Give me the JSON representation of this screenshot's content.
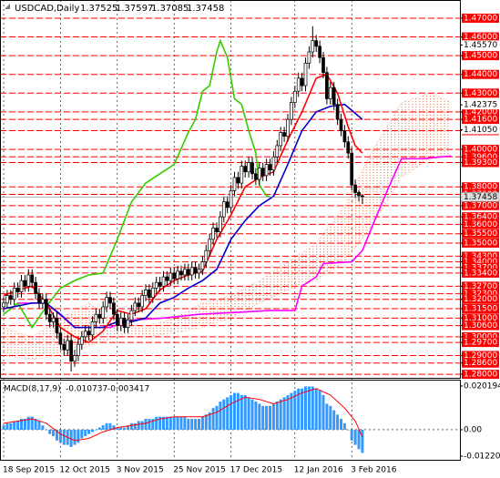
{
  "chart_data": {
    "type": "candlestick",
    "symbol": "USDCAD,Daily",
    "categories": [
      "18 Sep 2015",
      null,
      null,
      null,
      null,
      null,
      null,
      null,
      null,
      null,
      null,
      null,
      null,
      null,
      null,
      null,
      "12 Oct 2015",
      null,
      null,
      null,
      null,
      null,
      null,
      null,
      null,
      null,
      null,
      null,
      null,
      null,
      null,
      null,
      "3 Nov 2015",
      null,
      null,
      null,
      null,
      null,
      null,
      null,
      null,
      null,
      null,
      null,
      null,
      null,
      null,
      null,
      "25 Nov 2015",
      null,
      null,
      null,
      null,
      null,
      null,
      null,
      null,
      null,
      null,
      null,
      null,
      null,
      null,
      null,
      "17 Dec 2015",
      null,
      null,
      null,
      null,
      null,
      null,
      null,
      null,
      null,
      null,
      null,
      null,
      null,
      null,
      null,
      null,
      null,
      "12 Jan 2016",
      null,
      null,
      null,
      null,
      null,
      null,
      null,
      null,
      null,
      null,
      null,
      null,
      null,
      null,
      null,
      "3 Feb 2016",
      null,
      null,
      null
    ],
    "open": [
      1.316,
      1.318,
      1.322,
      1.32,
      1.326,
      1.324,
      1.33,
      1.327,
      1.333,
      1.329,
      1.323,
      1.318,
      1.32,
      1.312,
      1.308,
      1.31,
      1.302,
      1.296,
      1.293,
      1.298,
      1.287,
      1.29,
      1.296,
      1.3,
      1.303,
      1.301,
      1.308,
      1.312,
      1.31,
      1.316,
      1.321,
      1.318,
      1.312,
      1.306,
      1.31,
      1.305,
      1.309,
      1.314,
      1.318,
      1.316,
      1.322,
      1.325,
      1.321,
      1.326,
      1.329,
      1.327,
      1.332,
      1.33,
      1.334,
      1.331,
      1.335,
      1.333,
      1.336,
      1.333,
      1.337,
      1.334,
      1.336,
      1.34,
      1.346,
      1.352,
      1.358,
      1.356,
      1.364,
      1.372,
      1.369,
      1.378,
      1.385,
      1.382,
      1.391,
      1.388,
      1.393,
      1.387,
      1.384,
      1.39,
      1.386,
      1.392,
      1.389,
      1.396,
      1.402,
      1.409,
      1.407,
      1.416,
      1.425,
      1.431,
      1.438,
      1.434,
      1.446,
      1.452,
      1.458,
      1.455,
      1.449,
      1.441,
      1.427,
      1.433,
      1.424,
      1.416,
      1.41,
      1.404,
      1.398,
      1.381,
      1.377,
      1.37525
    ],
    "high": [
      1.321,
      1.325,
      1.325,
      1.329,
      1.329,
      1.333,
      1.333,
      1.336,
      1.336,
      1.332,
      1.326,
      1.323,
      1.323,
      1.315,
      1.313,
      1.313,
      1.305,
      1.299,
      1.301,
      1.301,
      1.293,
      1.299,
      1.303,
      1.306,
      1.306,
      1.311,
      1.315,
      1.315,
      1.319,
      1.324,
      1.324,
      1.321,
      1.315,
      1.313,
      1.313,
      1.312,
      1.317,
      1.321,
      1.321,
      1.325,
      1.328,
      1.328,
      1.329,
      1.332,
      1.332,
      1.335,
      1.335,
      1.337,
      1.337,
      1.338,
      1.338,
      1.339,
      1.339,
      1.34,
      1.34,
      1.339,
      1.343,
      1.349,
      1.355,
      1.361,
      1.361,
      1.367,
      1.375,
      1.375,
      1.381,
      1.388,
      1.388,
      1.394,
      1.394,
      1.396,
      1.396,
      1.39,
      1.393,
      1.393,
      1.395,
      1.395,
      1.399,
      1.405,
      1.412,
      1.412,
      1.419,
      1.428,
      1.434,
      1.441,
      1.441,
      1.449,
      1.455,
      1.4657,
      1.461,
      1.458,
      1.452,
      1.444,
      1.436,
      1.436,
      1.427,
      1.419,
      1.413,
      1.407,
      1.401,
      1.384,
      1.3783,
      1.37597
    ],
    "low": [
      1.313,
      1.315,
      1.317,
      1.317,
      1.321,
      1.321,
      1.324,
      1.324,
      1.326,
      1.32,
      1.315,
      1.315,
      1.309,
      1.305,
      1.305,
      1.299,
      1.293,
      1.29,
      1.29,
      1.2815,
      1.284,
      1.287,
      1.293,
      1.297,
      1.298,
      1.298,
      1.305,
      1.307,
      1.307,
      1.313,
      1.315,
      1.309,
      1.303,
      1.303,
      1.302,
      1.302,
      1.306,
      1.311,
      1.313,
      1.313,
      1.319,
      1.318,
      1.318,
      1.323,
      1.324,
      1.324,
      1.327,
      1.327,
      1.328,
      1.328,
      1.33,
      1.33,
      1.33,
      1.33,
      1.331,
      1.331,
      1.333,
      1.337,
      1.343,
      1.349,
      1.353,
      1.353,
      1.361,
      1.366,
      1.366,
      1.375,
      1.379,
      1.379,
      1.385,
      1.385,
      1.384,
      1.381,
      1.381,
      1.383,
      1.383,
      1.386,
      1.386,
      1.393,
      1.399,
      1.404,
      1.404,
      1.413,
      1.422,
      1.428,
      1.431,
      1.431,
      1.443,
      1.449,
      1.452,
      1.446,
      1.438,
      1.424,
      1.424,
      1.421,
      1.413,
      1.407,
      1.401,
      1.395,
      1.378,
      1.374,
      1.3722,
      1.37085
    ],
    "close": [
      1.318,
      1.322,
      1.32,
      1.326,
      1.324,
      1.33,
      1.327,
      1.333,
      1.329,
      1.323,
      1.318,
      1.32,
      1.312,
      1.308,
      1.31,
      1.302,
      1.296,
      1.293,
      1.298,
      1.287,
      1.29,
      1.296,
      1.3,
      1.303,
      1.301,
      1.308,
      1.312,
      1.31,
      1.316,
      1.321,
      1.318,
      1.312,
      1.306,
      1.31,
      1.305,
      1.309,
      1.314,
      1.318,
      1.316,
      1.322,
      1.325,
      1.321,
      1.326,
      1.329,
      1.327,
      1.332,
      1.33,
      1.334,
      1.331,
      1.335,
      1.333,
      1.336,
      1.333,
      1.337,
      1.334,
      1.336,
      1.34,
      1.346,
      1.352,
      1.358,
      1.356,
      1.364,
      1.372,
      1.369,
      1.378,
      1.385,
      1.382,
      1.391,
      1.388,
      1.393,
      1.387,
      1.384,
      1.39,
      1.386,
      1.392,
      1.389,
      1.396,
      1.402,
      1.409,
      1.407,
      1.416,
      1.425,
      1.431,
      1.438,
      1.434,
      1.446,
      1.452,
      1.458,
      1.455,
      1.449,
      1.441,
      1.427,
      1.433,
      1.424,
      1.416,
      1.41,
      1.404,
      1.398,
      1.381,
      1.377,
      1.37525,
      1.37458
    ],
    "up_color": "#ffffff",
    "down_color": "#000000",
    "ylim": [
      1.2781,
      1.4797
    ],
    "yticks": [
      {
        "value": 1.4557,
        "label": "1.45570"
      },
      {
        "value": 1.42375,
        "label": "1.42375"
      },
      {
        "value": 1.4105,
        "label": "1.41050"
      }
    ],
    "level_color": "#ff0000",
    "levels": [
      {
        "value": 1.47,
        "label": "1.47000"
      },
      {
        "value": 1.46,
        "label": "1.46000"
      },
      {
        "value": 1.45,
        "label": "1.45000"
      },
      {
        "value": 1.44,
        "label": "1.44000"
      },
      {
        "value": 1.43,
        "label": "1.43000"
      },
      {
        "value": 1.42,
        "label": "1.42000"
      },
      {
        "value": 1.416,
        "label": "1.41600"
      },
      {
        "value": 1.41,
        "label": "1.41000"
      },
      {
        "value": 1.4,
        "label": "1.40000"
      },
      {
        "value": 1.396,
        "label": "1.39600"
      },
      {
        "value": 1.393,
        "label": "1.39300"
      },
      {
        "value": 1.38,
        "label": "1.38000"
      },
      {
        "value": 1.376,
        "label": "1.37600"
      },
      {
        "value": 1.37,
        "label": "1.37000"
      },
      {
        "value": 1.364,
        "label": "1.36400"
      },
      {
        "value": 1.36,
        "label": "1.36000"
      },
      {
        "value": 1.355,
        "label": "1.35500"
      },
      {
        "value": 1.35,
        "label": "1.35000"
      },
      {
        "value": 1.343,
        "label": "1.34300"
      },
      {
        "value": 1.34,
        "label": "1.34000"
      },
      {
        "value": 1.337,
        "label": "1.33700"
      },
      {
        "value": 1.334,
        "label": "1.33400"
      },
      {
        "value": 1.327,
        "label": "1.32700"
      },
      {
        "value": 1.323,
        "label": "1.32300"
      },
      {
        "value": 1.32,
        "label": "1.32000"
      },
      {
        "value": 1.315,
        "label": "1.31500"
      },
      {
        "value": 1.31,
        "label": "1.31000"
      },
      {
        "value": 1.306,
        "label": "1.30600"
      },
      {
        "value": 1.3,
        "label": "1.30000"
      },
      {
        "value": 1.297,
        "label": "1.29700"
      },
      {
        "value": 1.29,
        "label": "1.29000"
      },
      {
        "value": 1.286,
        "label": "1.28600"
      },
      {
        "value": 1.28,
        "label": "1.28000"
      }
    ],
    "cloud": {
      "color": "#e89070",
      "x": [
        0,
        8,
        16,
        24,
        32,
        40,
        48,
        56,
        64,
        72,
        80,
        88,
        96,
        104,
        112,
        120,
        126
      ],
      "span_a": [
        1.305,
        1.3,
        1.31,
        1.318,
        1.308,
        1.305,
        1.31,
        1.318,
        1.322,
        1.33,
        1.34,
        1.35,
        1.37,
        1.4,
        1.425,
        1.43,
        1.425
      ],
      "span_b": [
        1.29,
        1.288,
        1.29,
        1.295,
        1.3,
        1.3,
        1.302,
        1.305,
        1.31,
        1.318,
        1.325,
        1.33,
        1.34,
        1.36,
        1.385,
        1.395,
        1.398
      ]
    },
    "overlays": [
      {
        "color": "#ff00ff",
        "x": [
          4,
          12,
          20,
          30,
          36,
          45,
          55,
          65,
          75,
          82,
          84,
          88,
          90,
          98,
          101,
          104,
          108,
          112,
          118,
          126
        ],
        "values": [
          1.318,
          1.318,
          1.305,
          1.305,
          1.309,
          1.31,
          1.312,
          1.313,
          1.314,
          1.314,
          1.327,
          1.332,
          1.339,
          1.34,
          1.346,
          1.36,
          1.378,
          1.395,
          1.395,
          1.3965
        ]
      },
      {
        "color": "#33cc00",
        "x": [
          0,
          4,
          8,
          12,
          16,
          20,
          24,
          28,
          32,
          36,
          40,
          44,
          48,
          52,
          54,
          56,
          58,
          60,
          61,
          63,
          65,
          67,
          69,
          71,
          72,
          74,
          75
        ],
        "values": [
          1.312,
          1.318,
          1.305,
          1.316,
          1.326,
          1.33,
          1.333,
          1.334,
          1.352,
          1.372,
          1.382,
          1.387,
          1.392,
          1.409,
          1.416,
          1.431,
          1.434,
          1.452,
          1.458,
          1.449,
          1.427,
          1.424,
          1.41,
          1.398,
          1.381,
          1.37525,
          1.37458
        ]
      },
      {
        "color": "#0000cc",
        "x": [
          0,
          8,
          12,
          16,
          20,
          24,
          28,
          32,
          36,
          40,
          44,
          48,
          52,
          56,
          60,
          64,
          68,
          72,
          76,
          80,
          84,
          88,
          92,
          96,
          101
        ],
        "values": [
          1.315,
          1.318,
          1.318,
          1.312,
          1.305,
          1.305,
          1.305,
          1.308,
          1.308,
          1.31,
          1.318,
          1.321,
          1.326,
          1.33,
          1.336,
          1.352,
          1.362,
          1.37,
          1.375,
          1.392,
          1.41,
          1.42,
          1.423,
          1.424,
          1.416
        ]
      },
      {
        "color": "#ff0000",
        "x": [
          0,
          4,
          8,
          12,
          16,
          20,
          24,
          28,
          32,
          36,
          40,
          44,
          48,
          52,
          56,
          60,
          64,
          68,
          72,
          76,
          80,
          84,
          88,
          91,
          94,
          97,
          99,
          101
        ],
        "values": [
          1.322,
          1.325,
          1.327,
          1.318,
          1.305,
          1.3,
          1.297,
          1.303,
          1.314,
          1.312,
          1.315,
          1.325,
          1.33,
          1.333,
          1.335,
          1.352,
          1.365,
          1.38,
          1.385,
          1.388,
          1.405,
          1.42,
          1.438,
          1.44,
          1.43,
          1.412,
          1.402,
          1.398
        ]
      }
    ],
    "indicator": {
      "type": "macd",
      "label": "MACD(8,17,9)",
      "color": "#3399ff",
      "signal_color": "#ff0000",
      "ylim": [
        -0.0139,
        0.0227
      ],
      "yticks": [
        0.020194,
        {
          "value": 0,
          "label": "0.00"
        },
        -0.012209
      ],
      "values": [
        0.002,
        0.003,
        0.003,
        0.004,
        0.004,
        0.005,
        0.005,
        0.006,
        0.006,
        0.005,
        0.004,
        0.002,
        0.0,
        -0.002,
        -0.003,
        -0.005,
        -0.006,
        -0.007,
        -0.007,
        -0.008,
        -0.007,
        -0.006,
        -0.004,
        -0.003,
        -0.002,
        -0.001,
        0.0,
        0.001,
        0.002,
        0.003,
        0.003,
        0.002,
        0.001,
        0.001,
        0.001,
        0.002,
        0.003,
        0.003,
        0.004,
        0.004,
        0.005,
        0.005,
        0.005,
        0.006,
        0.006,
        0.006,
        0.006,
        0.006,
        0.006,
        0.006,
        0.006,
        0.006,
        0.005,
        0.005,
        0.005,
        0.005,
        0.006,
        0.007,
        0.008,
        0.01,
        0.011,
        0.013,
        0.014,
        0.015,
        0.016,
        0.017,
        0.017,
        0.016,
        0.016,
        0.015,
        0.014,
        0.013,
        0.012,
        0.011,
        0.011,
        0.011,
        0.012,
        0.013,
        0.014,
        0.015,
        0.016,
        0.017,
        0.018,
        0.019,
        0.019,
        0.02,
        0.02,
        0.02,
        0.019,
        0.018,
        0.016,
        0.012,
        0.011,
        0.009,
        0.007,
        0.005,
        0.003,
        0.0,
        -0.005,
        -0.007,
        -0.009,
        -0.010737
      ],
      "signal_x": [
        0,
        4,
        8,
        12,
        16,
        20,
        24,
        28,
        32,
        36,
        40,
        44,
        48,
        52,
        56,
        60,
        64,
        68,
        72,
        76,
        80,
        84,
        88,
        92,
        96,
        99,
        101
      ],
      "signal": [
        0.003,
        0.004,
        0.005,
        0.003,
        -0.002,
        -0.005,
        -0.004,
        -0.001,
        0.001,
        0.002,
        0.003,
        0.005,
        0.006,
        0.006,
        0.006,
        0.008,
        0.012,
        0.015,
        0.014,
        0.012,
        0.014,
        0.017,
        0.019,
        0.016,
        0.01,
        0.004,
        -0.003417
      ]
    }
  }
}
